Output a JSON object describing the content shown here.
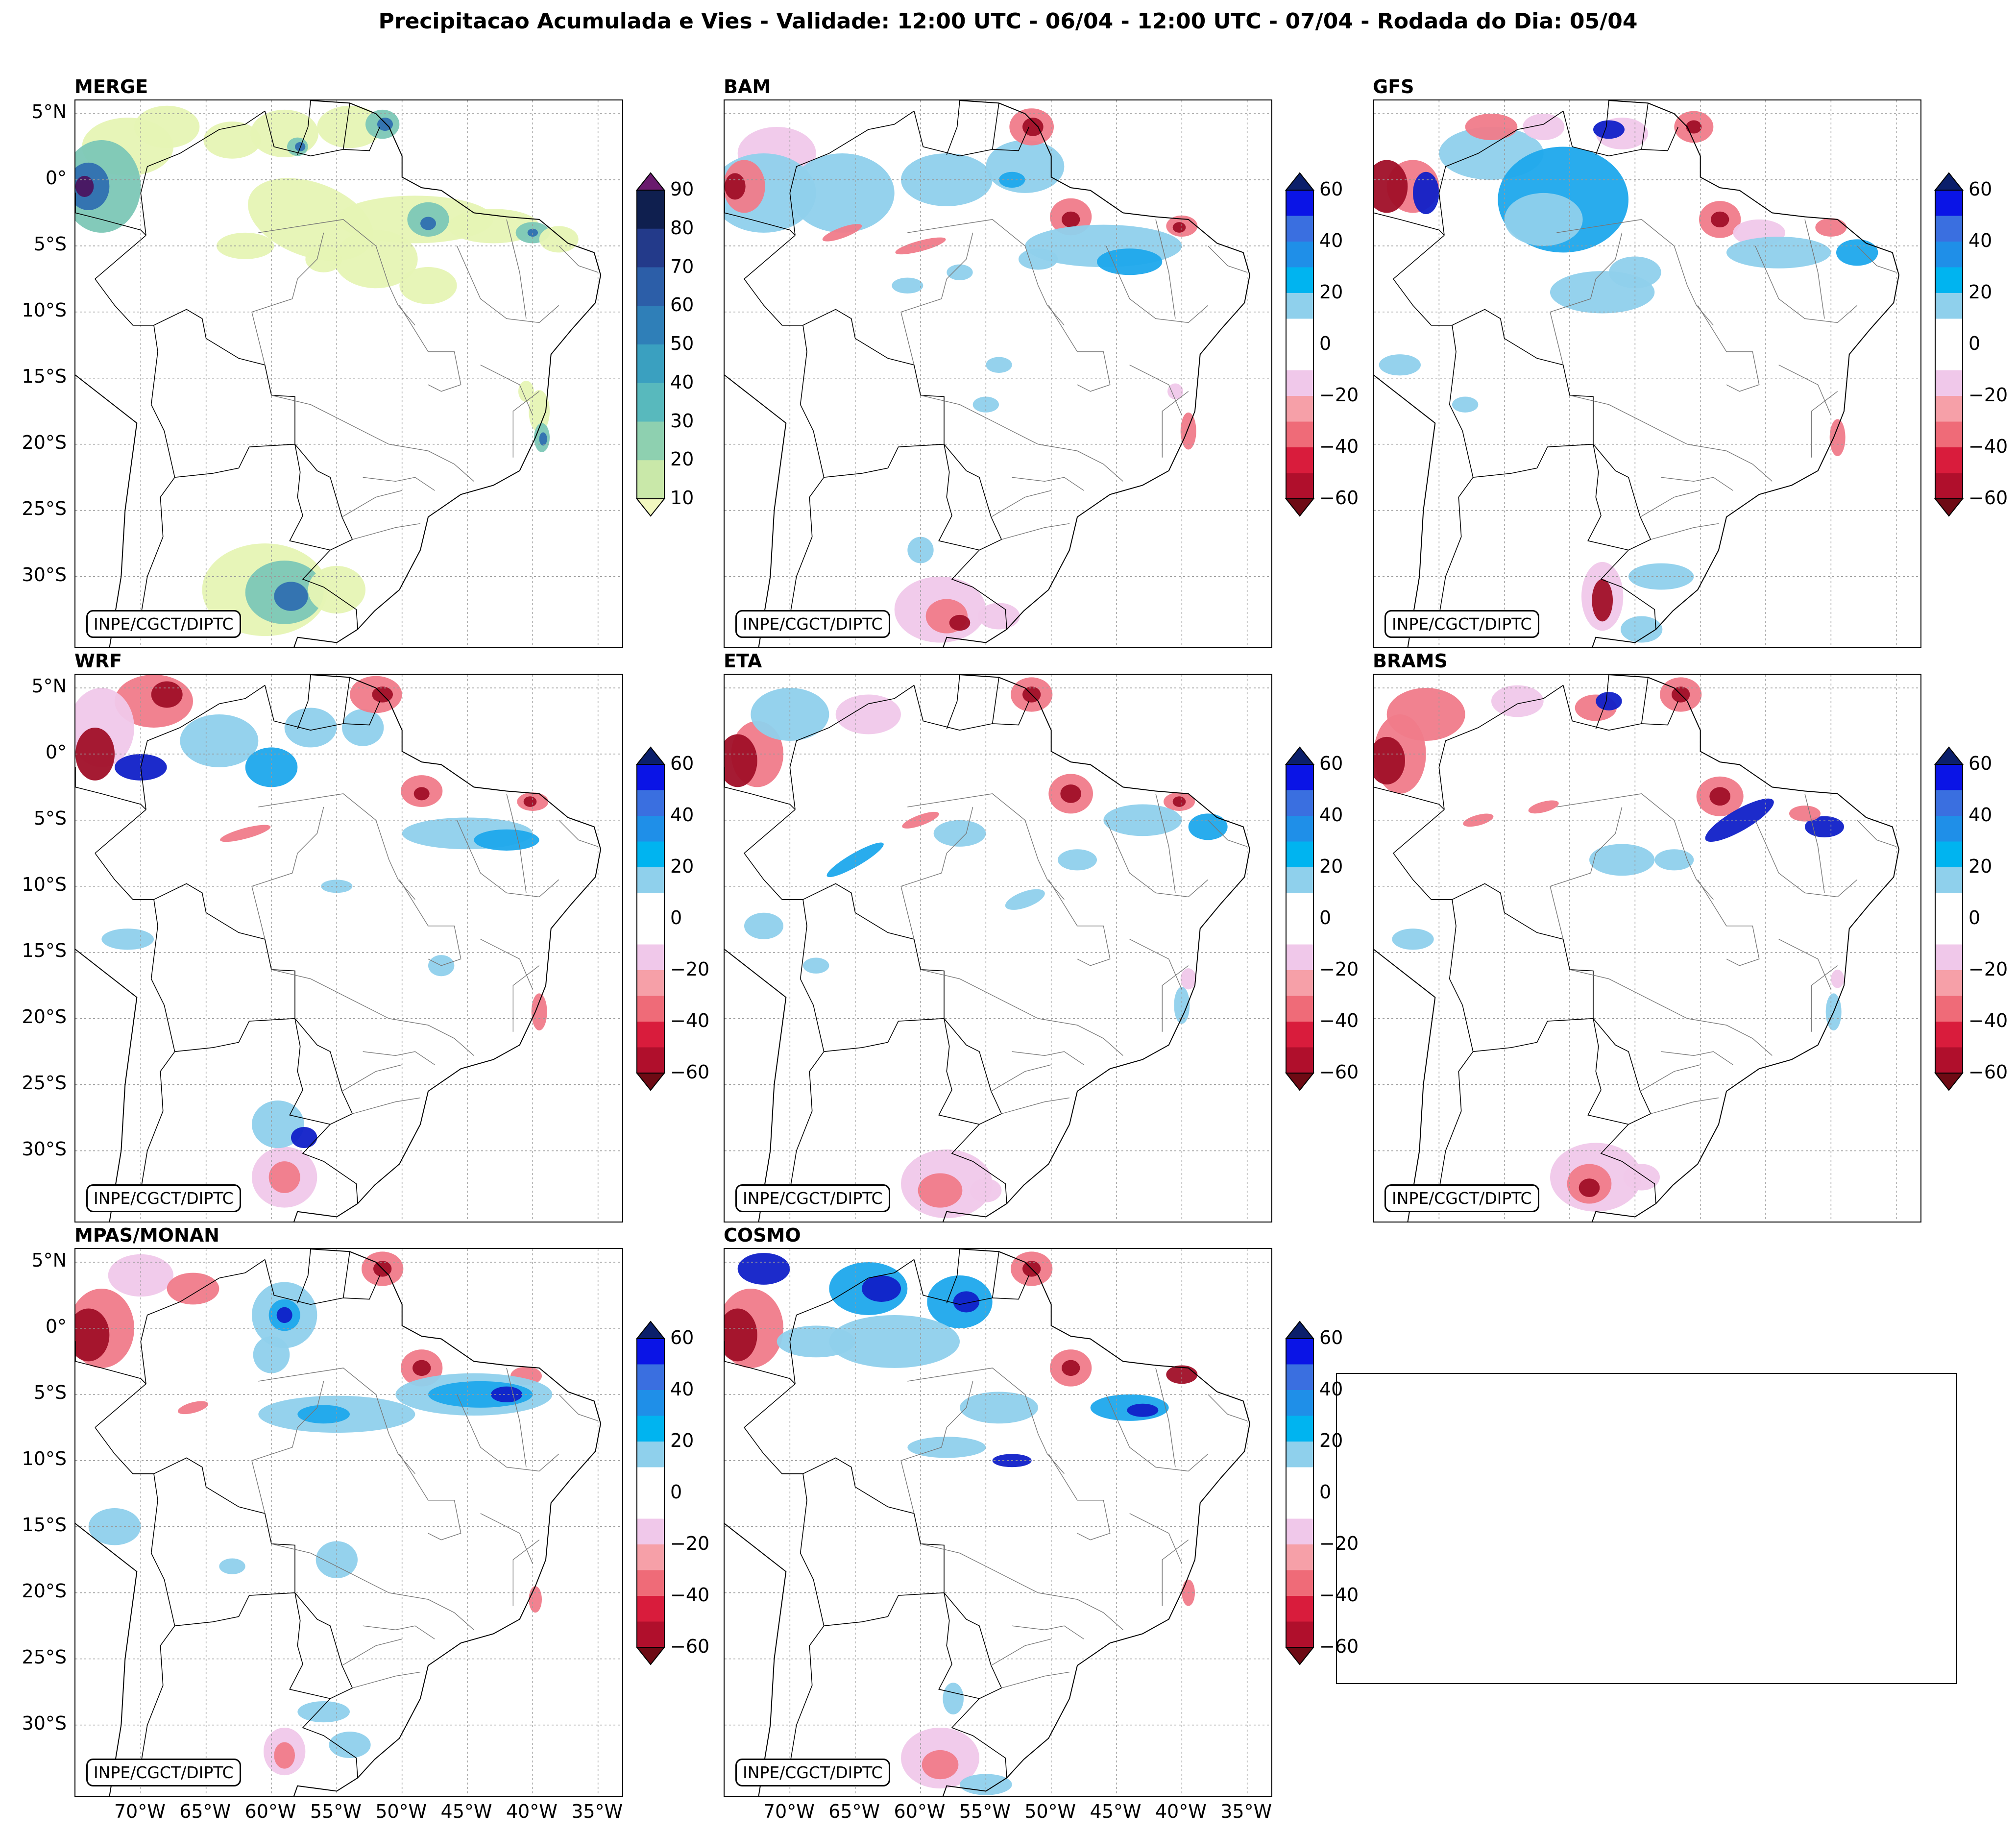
{
  "title": "Precipitacao Acumulada e Vies - Validade: 12:00 UTC - 06/04 - 12:00 UTC - 07/04 - Rodada do Dia: 05/04",
  "credit": "INPE/CGCT/DIPTC",
  "lat_labels": [
    "5°N",
    "0°",
    "5°S",
    "10°S",
    "15°S",
    "20°S",
    "25°S",
    "30°S"
  ],
  "lon_labels": [
    "70°W",
    "65°W",
    "60°W",
    "55°W",
    "50°W",
    "45°W",
    "40°W",
    "35°W"
  ],
  "panels": [
    {
      "name": "MERGE",
      "kind": "precip"
    },
    {
      "name": "BAM",
      "kind": "bias"
    },
    {
      "name": "GFS",
      "kind": "bias"
    },
    {
      "name": "WRF",
      "kind": "bias"
    },
    {
      "name": "ETA",
      "kind": "bias"
    },
    {
      "name": "BRAMS",
      "kind": "bias"
    },
    {
      "name": "MPAS/MONAN",
      "kind": "bias"
    },
    {
      "name": "COSMO",
      "kind": "bias"
    }
  ],
  "colorbars": {
    "precip": {
      "ticks": [
        "90",
        "80",
        "70",
        "60",
        "50",
        "40",
        "30",
        "20",
        "10"
      ],
      "colors": [
        "#6a1b6e",
        "#0f1f4f",
        "#233a8a",
        "#2c5ea8",
        "#2f7fb8",
        "#3aa0c0",
        "#58b9bd",
        "#8ed0b0",
        "#c9e8a9",
        "#f2f8c0"
      ]
    },
    "bias": {
      "ticks": [
        "60",
        "40",
        "20",
        "0",
        "−20",
        "−40",
        "−60"
      ],
      "colors": [
        "#0b1f6b",
        "#0a14e6",
        "#3a6fe0",
        "#1f8fe8",
        "#00b4f0",
        "#8fd0ec",
        "#ffffff",
        "#ffffff",
        "#f0c8ea",
        "#f6a0a8",
        "#ef6b78",
        "#d91c3c",
        "#b00f2c",
        "#6e0a14"
      ]
    }
  }
}
